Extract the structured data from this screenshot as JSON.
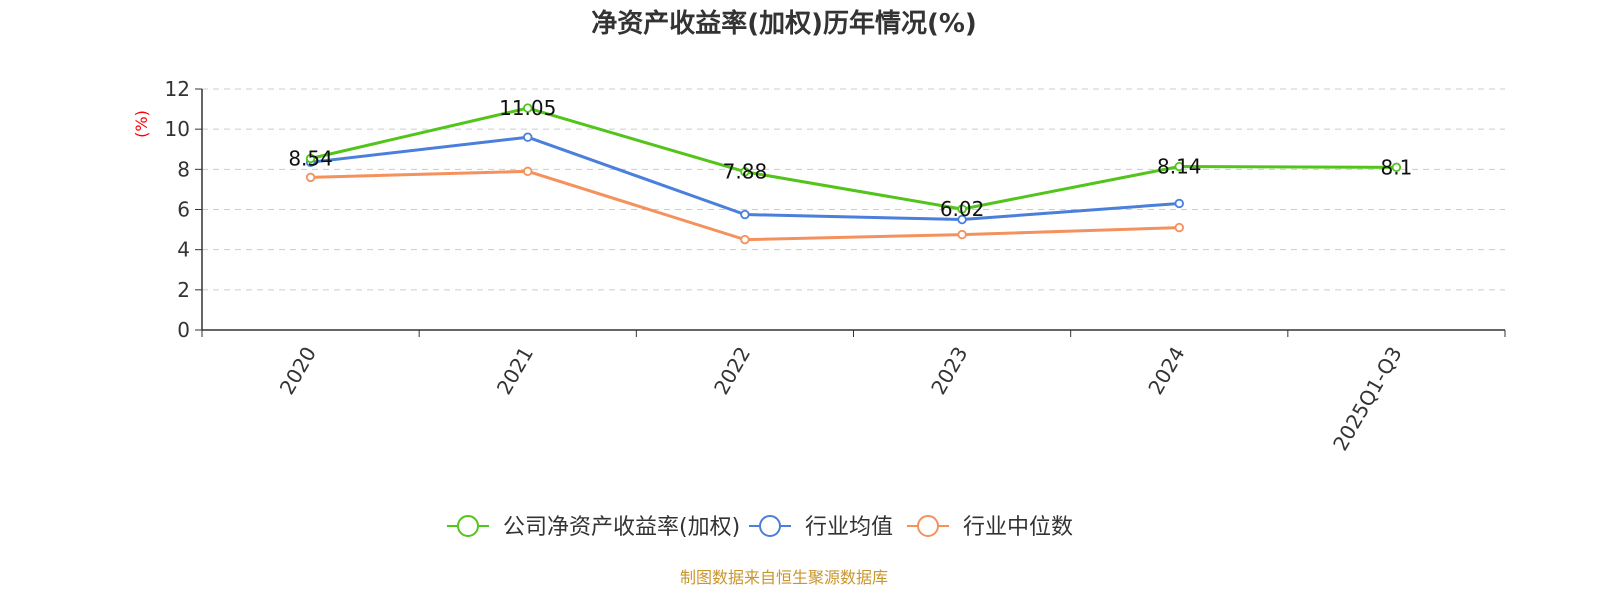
{
  "chart_data": {
    "type": "line",
    "title": "净资产收益率(加权)历年情况(%)",
    "xlabel": "",
    "ylabel": "(%)",
    "categories": [
      "2020",
      "2021",
      "2022",
      "2023",
      "2024",
      "2025Q1-Q3"
    ],
    "ylim": [
      0,
      12
    ],
    "yticks": [
      0,
      2,
      4,
      6,
      8,
      10,
      12
    ],
    "grid": true,
    "legend_position": "bottom-center",
    "series": [
      {
        "name": "公司净资产收益率(加权)",
        "color": "#52c41a",
        "values": [
          8.54,
          11.05,
          7.88,
          6.02,
          8.14,
          8.1
        ],
        "labels": [
          "8.54",
          "11.05",
          "7.88",
          "6.02",
          "8.14",
          "8.1"
        ]
      },
      {
        "name": "行业均值",
        "color": "#4a7fdb",
        "values": [
          8.35,
          9.6,
          5.75,
          5.5,
          6.3,
          null
        ]
      },
      {
        "name": "行业中位数",
        "color": "#f4915d",
        "values": [
          7.6,
          7.9,
          4.5,
          4.75,
          5.1,
          null
        ]
      }
    ]
  },
  "colors": {
    "ylabel": "#ff0000",
    "footer": "#c9962d",
    "axis": "#333333",
    "grid": "#cccccc"
  },
  "footer": "制图数据来自恒生聚源数据库"
}
